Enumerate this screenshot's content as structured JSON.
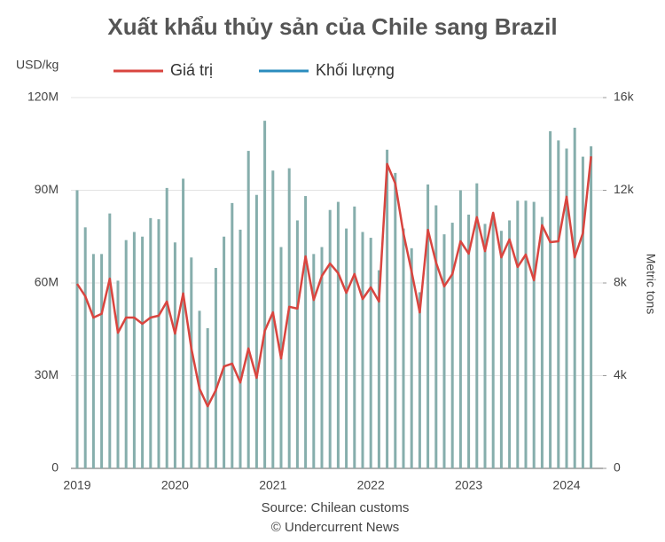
{
  "chart_data": {
    "type": "combo",
    "title": "Xuất khẩu thủy sản của Chile sang Brazil",
    "y_label": "USD/kg",
    "y2_label": "Metric tons",
    "source": "Source: Chilean customs",
    "copyright": "© Undercurrent News",
    "categories": [
      "2019",
      null,
      null,
      null,
      null,
      null,
      null,
      null,
      null,
      null,
      null,
      null,
      "2020",
      null,
      null,
      null,
      null,
      null,
      null,
      null,
      null,
      null,
      null,
      null,
      "2021",
      null,
      null,
      null,
      null,
      null,
      null,
      null,
      null,
      null,
      null,
      null,
      "2022",
      null,
      null,
      null,
      null,
      null,
      null,
      null,
      null,
      null,
      null,
      null,
      "2023",
      null,
      null,
      null,
      null,
      null,
      null,
      null,
      null,
      null,
      null,
      null,
      "2024",
      null,
      null,
      null
    ],
    "series": [
      {
        "name": "Khối lượng",
        "type": "bar",
        "axis": "y2",
        "color": "#2b8cbe",
        "bar_color": "#86aeac",
        "values": [
          12000,
          10400,
          9250,
          9250,
          11000,
          8100,
          9850,
          10200,
          10000,
          10800,
          10750,
          12100,
          9750,
          12500,
          9100,
          6800,
          6050,
          8650,
          10000,
          11450,
          10300,
          13700,
          11800,
          15000,
          12850,
          9550,
          12950,
          10700,
          11750,
          9250,
          9550,
          11150,
          11500,
          10350,
          11300,
          10200,
          9950,
          8550,
          13750,
          12750,
          10350,
          9500,
          7600,
          12250,
          11350,
          10100,
          10600,
          12000,
          10950,
          12300,
          10550,
          11000,
          10250,
          10700,
          11550,
          11550,
          11500,
          10850,
          14550,
          14150,
          13800,
          14700,
          13450,
          13900
        ]
      },
      {
        "name": "Giá trị",
        "type": "line",
        "color": "#d9453f",
        "values": [
          59700000,
          55700000,
          48800000,
          50000000,
          61400000,
          43900000,
          48800000,
          48800000,
          46800000,
          48800000,
          49400000,
          54000000,
          43600000,
          56600000,
          38800000,
          25800000,
          20100000,
          25300000,
          33000000,
          33900000,
          27800000,
          38800000,
          29300000,
          44500000,
          50500000,
          35600000,
          52300000,
          51700000,
          68600000,
          54500000,
          62300000,
          66300000,
          63200000,
          56800000,
          62900000,
          54800000,
          58600000,
          54000000,
          98500000,
          92200000,
          76100000,
          63700000,
          50500000,
          77200000,
          66600000,
          58900000,
          62900000,
          73500000,
          69500000,
          81300000,
          70300000,
          82700000,
          68300000,
          74100000,
          65200000,
          69200000,
          60900000,
          78700000,
          73200000,
          73500000,
          87900000,
          68300000,
          76100000,
          101000000
        ]
      }
    ],
    "ylim": [
      0,
      120000000
    ],
    "yticks": [
      0,
      {
        "value": 30000000,
        "label": "30M"
      },
      {
        "value": 60000000,
        "label": "60M"
      },
      {
        "value": 90000000,
        "label": "90M"
      },
      {
        "value": 120000000,
        "label": "120M"
      }
    ],
    "y2lim": [
      0,
      16000
    ],
    "y2ticks": [
      0,
      {
        "value": 4000,
        "label": "4k"
      },
      {
        "value": 8000,
        "label": "8k"
      },
      {
        "value": 12000,
        "label": "12k"
      },
      {
        "value": 16000,
        "label": "16k"
      }
    ],
    "grid": true
  }
}
